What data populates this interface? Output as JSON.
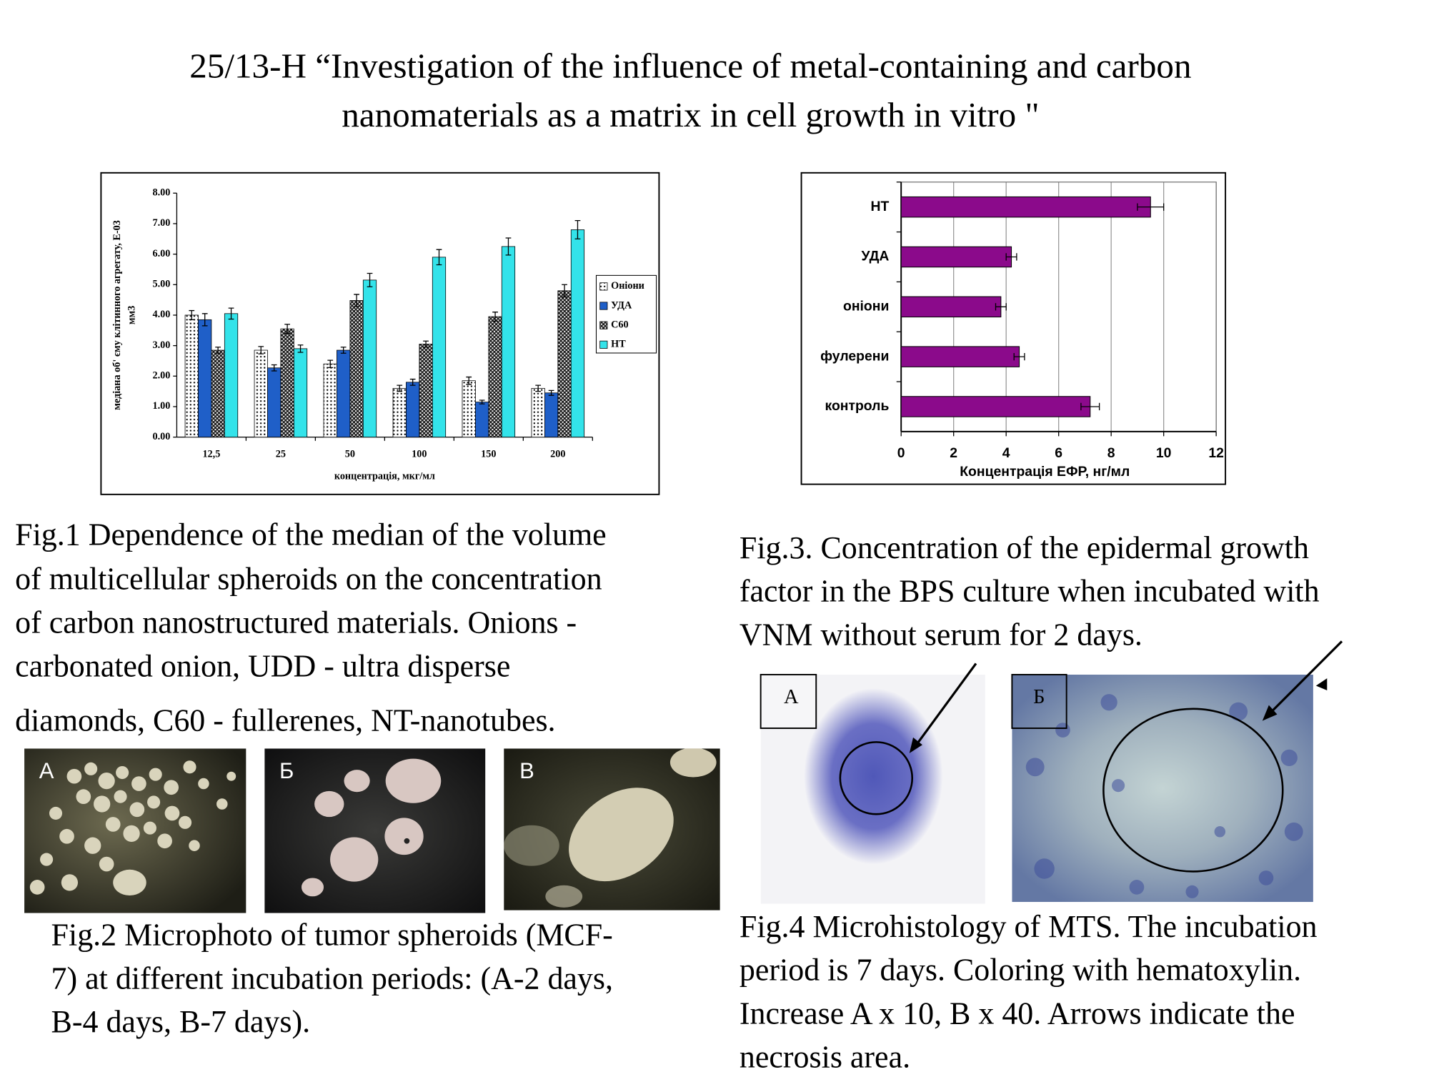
{
  "title": [
    "25/13-Н “Investigation of the influence of metal-containing and carbon",
    "nanomaterials as a matrix in cell growth in vitro \""
  ],
  "chart_data": [
    {
      "type": "bar",
      "ylabel": [
        "медіана об' єму клітинного агрегату, Е-03",
        "мм3"
      ],
      "xlabel": "концентрація, мкг/мл",
      "categories": [
        "12,5",
        "25",
        "50",
        "100",
        "150",
        "200"
      ],
      "series": [
        {
          "name": "Оніони",
          "color": "#ffffff",
          "pattern": "dots",
          "values": [
            4.0,
            2.85,
            2.4,
            1.6,
            1.85,
            1.6
          ],
          "errors": [
            0.15,
            0.12,
            0.12,
            0.1,
            0.12,
            0.1
          ]
        },
        {
          "name": "УДА",
          "color": "#1f5fc8",
          "values": [
            3.85,
            2.27,
            2.85,
            1.8,
            1.15,
            1.45
          ],
          "errors": [
            0.2,
            0.1,
            0.1,
            0.1,
            0.06,
            0.08
          ]
        },
        {
          "name": "С60",
          "color": "#1a1a1a",
          "pattern": "checker",
          "values": [
            2.85,
            3.55,
            4.48,
            3.05,
            3.95,
            4.8
          ],
          "errors": [
            0.1,
            0.15,
            0.2,
            0.1,
            0.15,
            0.2
          ]
        },
        {
          "name": "НТ",
          "color": "#33e3ea",
          "values": [
            4.05,
            2.9,
            5.15,
            5.9,
            6.25,
            6.8
          ],
          "errors": [
            0.18,
            0.12,
            0.22,
            0.25,
            0.28,
            0.3
          ]
        }
      ],
      "ylim": [
        0,
        8
      ],
      "yticks": [
        {
          "value": 0,
          "label": "0.00"
        },
        {
          "value": 1,
          "label": "1.00"
        },
        {
          "value": 2,
          "label": "2.00"
        },
        {
          "value": 3,
          "label": "3.00"
        },
        {
          "value": 4,
          "label": "4.00"
        },
        {
          "value": 5,
          "label": "5.00"
        },
        {
          "value": 6,
          "label": "6.00"
        },
        {
          "value": 7,
          "label": "7.00"
        },
        {
          "value": 8,
          "label": "8.00"
        }
      ],
      "grid": false,
      "legend": "right"
    },
    {
      "type": "barh",
      "xlabel": "Концентрація ЕФР, нг/мл",
      "categories": [
        "НТ",
        "УДА",
        "оніони",
        "фулерени",
        "контроль"
      ],
      "values": [
        9.5,
        4.2,
        3.8,
        4.5,
        7.2
      ],
      "errors": [
        0.5,
        0.2,
        0.2,
        0.2,
        0.35
      ],
      "color": "#8b0a8b",
      "xlim": [
        0,
        12
      ],
      "xticks": [
        0,
        2,
        4,
        6,
        8,
        10,
        12
      ],
      "grid": true
    }
  ],
  "captions": {
    "fig1": [
      "Fig.1 Dependence of the median of the volume",
      "of multicellular spheroids on the concentration",
      "of carbon nanostructured materials. Onions -",
      "carbonated onion, UDD - ultra disperse",
      "diamonds, C60 - fullerenes, NT-nanotubes."
    ],
    "fig2": [
      "Fig.2 Microphoto of tumor spheroids (MCF-",
      "7) at different incubation periods: (A-2 days,",
      "B-4 days, B-7 days)."
    ],
    "fig3": [
      "Fig.3. Concentration of the epidermal growth",
      "factor in the BPS culture when incubated with",
      "VNM without serum for 2 days."
    ],
    "fig4": [
      "Fig.4 Microhistology of MTS. The incubation",
      "period is 7 days. Coloring with hematoxylin.",
      "Increase A x 10, B x 40. Arrows indicate the",
      "necrosis area."
    ]
  },
  "fig2_panels": [
    "А",
    "Б",
    "В"
  ],
  "fig4_panels": [
    "А",
    "Б"
  ]
}
